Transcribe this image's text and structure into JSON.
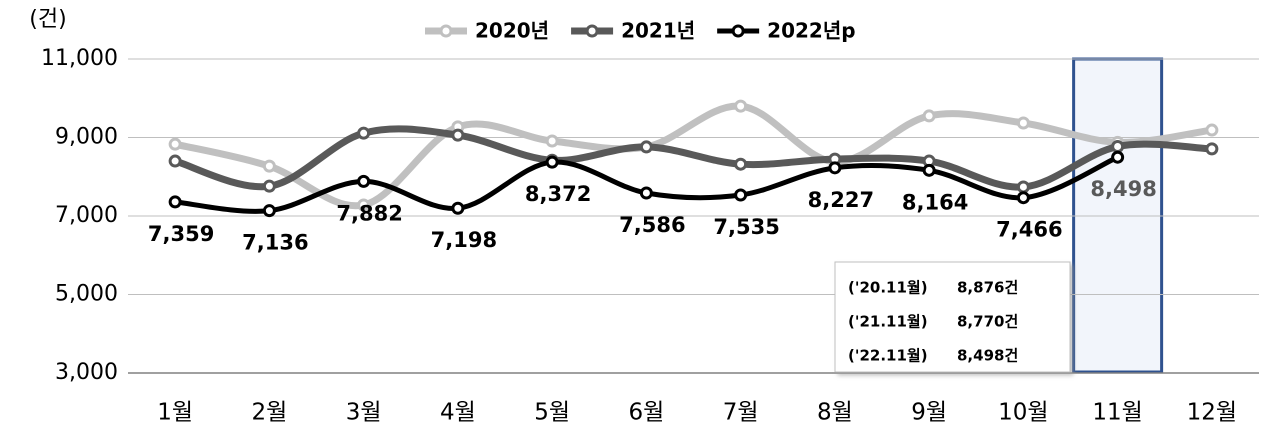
{
  "chart_data": {
    "type": "line",
    "unit_label": "(건)",
    "categories": [
      "1월",
      "2월",
      "3월",
      "4월",
      "5월",
      "6월",
      "7월",
      "8월",
      "9월",
      "10월",
      "11월",
      "12월"
    ],
    "series": [
      {
        "name": "2020년",
        "color": "#c0c0c0",
        "values": [
          8830,
          8270,
          7280,
          9270,
          8910,
          8760,
          9800,
          8380,
          9550,
          9370,
          8876,
          9190
        ]
      },
      {
        "name": "2021년",
        "color": "#595959",
        "values": [
          8400,
          7760,
          9110,
          9060,
          8420,
          8760,
          8320,
          8450,
          8400,
          7740,
          8770,
          8710
        ]
      },
      {
        "name": "2022년p",
        "color": "#000000",
        "values": [
          7359,
          7136,
          7882,
          7198,
          8372,
          7586,
          7535,
          8227,
          8164,
          7466,
          8498,
          null
        ],
        "value_labels": [
          "7,359",
          "7,136",
          "7,882",
          "7,198",
          "8,372",
          "7,586",
          "7,535",
          "8,227",
          "8,164",
          "7,466",
          "8,498",
          null
        ]
      }
    ],
    "ylim": [
      3000,
      11000
    ],
    "yticks": [
      {
        "value": 3000,
        "label": "3,000"
      },
      {
        "value": 5000,
        "label": "5,000"
      },
      {
        "value": 7000,
        "label": "7,000"
      },
      {
        "value": 9000,
        "label": "9,000"
      },
      {
        "value": 11000,
        "label": "11,000"
      }
    ],
    "grid": true,
    "legend": "top",
    "highlight_category": 10,
    "annotation": [
      [
        "('20.11월)",
        "8,876건"
      ],
      [
        "('21.11월)",
        "8,770건"
      ],
      [
        "('22.11월)",
        "8,498건"
      ]
    ]
  }
}
